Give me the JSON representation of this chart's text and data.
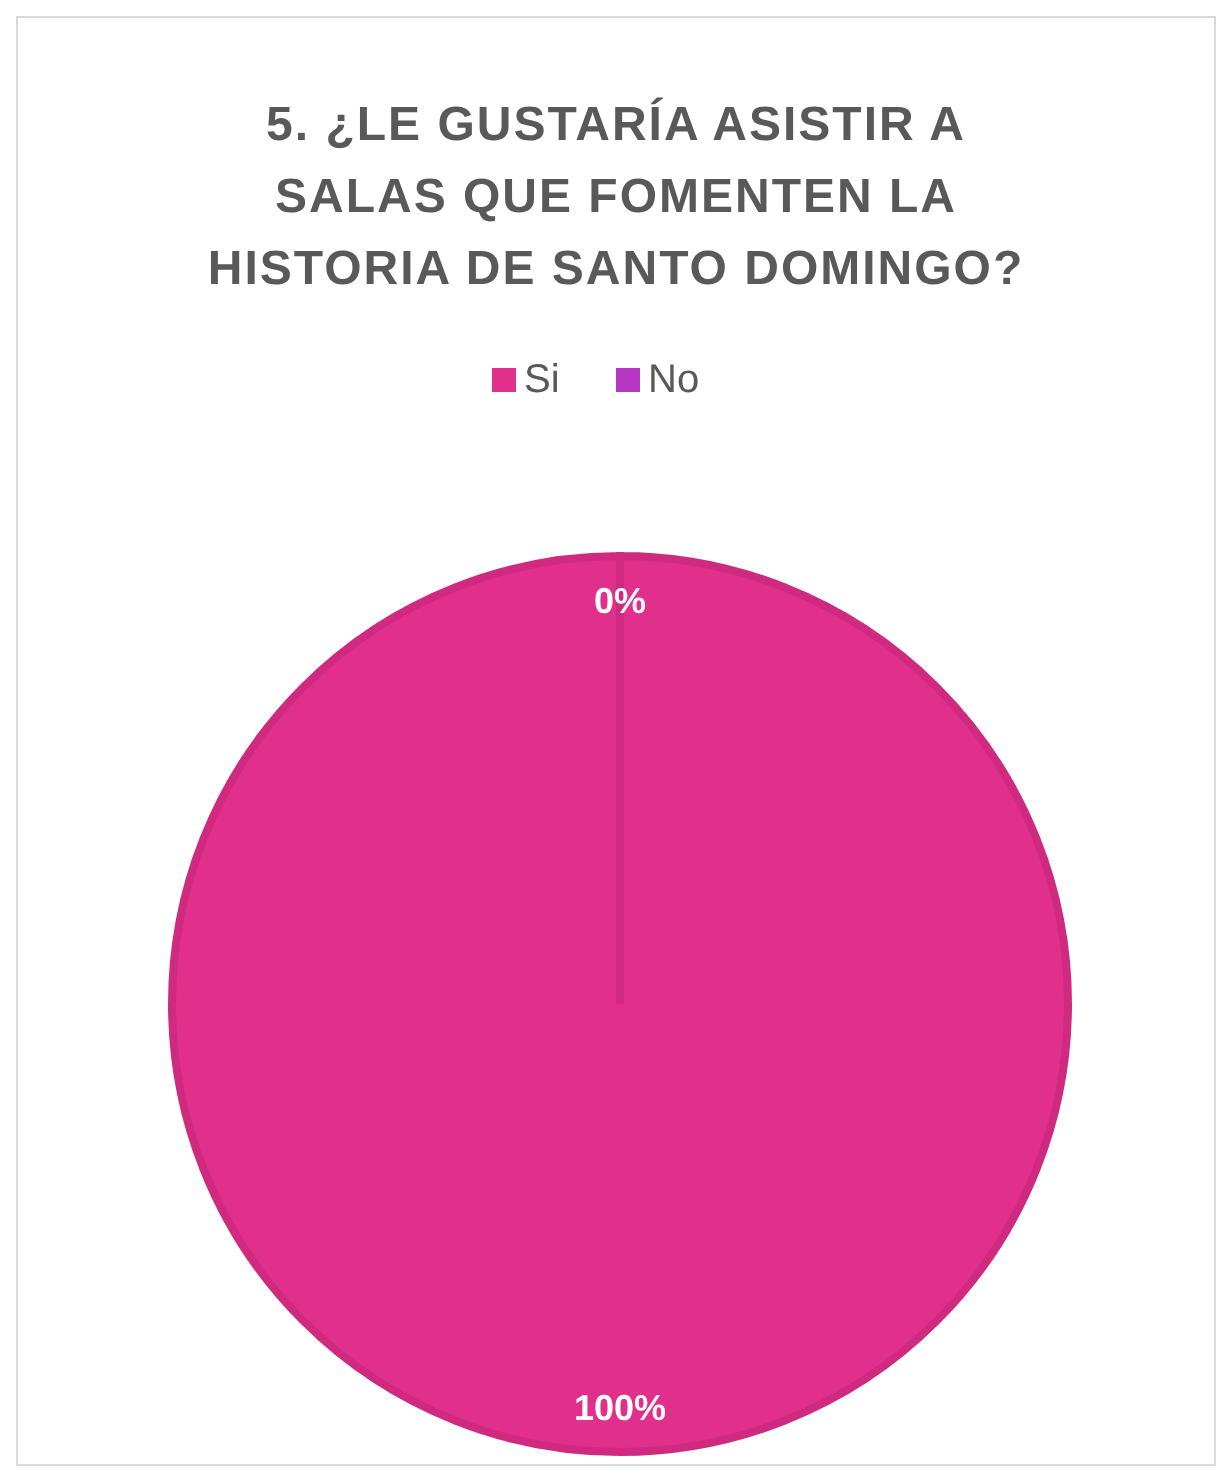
{
  "chart_data": {
    "type": "pie",
    "title": "5. ¿LE GUSTARÍA ASISTIR A SALAS QUE FOMENTEN LA HISTORIA DE SANTO DOMINGO?",
    "categories": [
      "Si",
      "No"
    ],
    "values": [
      100,
      0
    ],
    "colors": [
      "#e0308c",
      "#b536c0"
    ],
    "value_labels": [
      "100%",
      "0%"
    ],
    "legend": "top"
  }
}
